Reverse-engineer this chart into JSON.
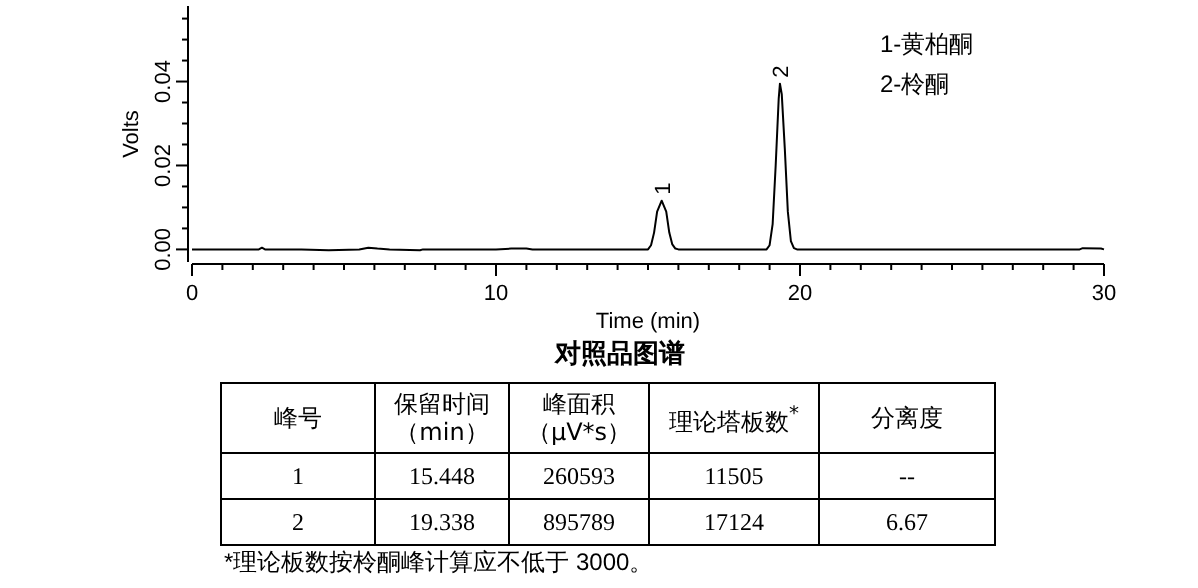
{
  "chart_data": {
    "type": "line",
    "title": "对照品图谱",
    "xlabel": "Time (min)",
    "ylabel": "Volts",
    "color": "#000000",
    "marker": "none",
    "line_style": "solid",
    "xlim": [
      0,
      30
    ],
    "ylim": [
      -0.003,
      0.058
    ],
    "xticks": [
      0,
      {
        "value": 1,
        "label": null
      },
      {
        "value": 2,
        "label": null
      },
      {
        "value": 3,
        "label": null
      },
      {
        "value": 4,
        "label": null
      },
      {
        "value": 5,
        "label": null
      },
      {
        "value": 6,
        "label": null
      },
      {
        "value": 7,
        "label": null
      },
      {
        "value": 8,
        "label": null
      },
      {
        "value": 9,
        "label": null
      },
      10,
      {
        "value": 11,
        "label": null
      },
      {
        "value": 12,
        "label": null
      },
      {
        "value": 13,
        "label": null
      },
      {
        "value": 14,
        "label": null
      },
      {
        "value": 15,
        "label": null
      },
      {
        "value": 16,
        "label": null
      },
      {
        "value": 17,
        "label": null
      },
      {
        "value": 18,
        "label": null
      },
      {
        "value": 19,
        "label": null
      },
      20,
      {
        "value": 21,
        "label": null
      },
      {
        "value": 22,
        "label": null
      },
      {
        "value": 23,
        "label": null
      },
      {
        "value": 24,
        "label": null
      },
      {
        "value": 25,
        "label": null
      },
      {
        "value": 26,
        "label": null
      },
      {
        "value": 27,
        "label": null
      },
      {
        "value": 28,
        "label": null
      },
      {
        "value": 29,
        "label": null
      },
      30
    ],
    "yticks": [
      {
        "value": 0,
        "label": "0.00"
      },
      {
        "value": 0.005,
        "label": null
      },
      {
        "value": 0.01,
        "label": null
      },
      {
        "value": 0.015,
        "label": null
      },
      {
        "value": 0.02,
        "label": "0.02"
      },
      {
        "value": 0.025,
        "label": null
      },
      {
        "value": 0.03,
        "label": null
      },
      {
        "value": 0.035,
        "label": null
      },
      {
        "value": 0.04,
        "label": "0.04"
      },
      {
        "value": 0.045,
        "label": null
      },
      {
        "value": 0.05,
        "label": null
      },
      {
        "value": 0.055,
        "label": null
      }
    ],
    "x": [
      0,
      2.2,
      2.3,
      2.4,
      3.6,
      4.5,
      5.5,
      5.8,
      6.1,
      6.5,
      7.5,
      7.6,
      10,
      10.5,
      11,
      11.2,
      15.0,
      15.1,
      15.2,
      15.3,
      15.45,
      15.6,
      15.7,
      15.8,
      15.9,
      16.0,
      18.9,
      19.0,
      19.1,
      19.2,
      19.3,
      19.34,
      19.4,
      19.5,
      19.6,
      19.7,
      19.8,
      19.9,
      29.2,
      29.3,
      29.9,
      30
    ],
    "values": [
      0,
      0,
      0.0004,
      0,
      0,
      -0.0002,
      0,
      0.0004,
      0.0002,
      0,
      -0.0002,
      0,
      0,
      0.0002,
      0.0002,
      0,
      0,
      0.001,
      0.004,
      0.009,
      0.0116,
      0.009,
      0.004,
      0.0012,
      0.0002,
      0,
      0,
      0.001,
      0.006,
      0.02,
      0.036,
      0.0395,
      0.037,
      0.024,
      0.009,
      0.002,
      0.0003,
      0,
      0,
      0.0003,
      0.0002,
      0
    ],
    "annotations": [
      {
        "text": "1",
        "x": 15.45,
        "y": 0.0116
      },
      {
        "text": "2",
        "x": 19.34,
        "y": 0.0395
      },
      "1-黄柏酮",
      "2-柃酮",
      "峰号",
      "保留时间（min）",
      "峰面积（μV*s）",
      "理论塔板数$^{*}$",
      "分离度",
      "1",
      "15.448",
      "260593",
      "11505",
      "--",
      "2",
      "19.338",
      "895789",
      "17124",
      "6.67",
      "*理论板数按柃酮峰计算应不低于 3000。"
    ]
  }
}
